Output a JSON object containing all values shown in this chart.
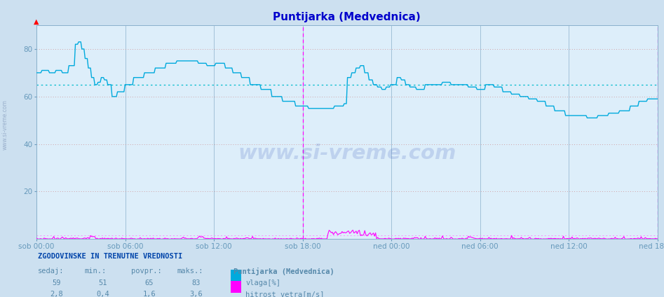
{
  "title": "Puntijarka (Medvednica)",
  "title_color": "#0000cc",
  "bg_color": "#cce0f0",
  "plot_bg_color": "#ddeefa",
  "grid_color_v": "#8ab0cc",
  "grid_color_h": "#cc8888",
  "avg_line_hum_color": "#00bbcc",
  "avg_line_wind_color": "#ff88ff",
  "humidity_color": "#00aadd",
  "wind_color": "#ff00ff",
  "ylim": [
    0,
    90
  ],
  "yticks": [
    20,
    40,
    60,
    80
  ],
  "xtick_labels": [
    "sob 00:00",
    "sob 06:00",
    "sob 12:00",
    "sob 18:00",
    "ned 00:00",
    "ned 06:00",
    "ned 12:00",
    "ned 18:00"
  ],
  "xlabel_color": "#6699bb",
  "ylabel_color": "#6699bb",
  "vlaga_label": "vlaga[%]",
  "hitrost_label": "hitrost vetra[m/s]",
  "station_label": "Puntijarka (Medvednica)",
  "table_header": "ZGODOVINSKE IN TRENUTNE VREDNOSTI",
  "col_sedaj": "sedaj:",
  "col_min": "min.:",
  "col_povpr": "povpr.:",
  "col_maks": "maks.:",
  "vlaga_sedaj": "59",
  "vlaga_min": "51",
  "vlaga_povpr": "65",
  "vlaga_maks": "83",
  "wind_sedaj": "2,8",
  "wind_min": "0,4",
  "wind_povpr": "1,6",
  "wind_maks": "3,6",
  "avg_humidity": 65,
  "avg_wind": 1.6,
  "n_points": 576,
  "watermark": "www.si-vreme.com",
  "left_label": "www.si-vreme.com"
}
